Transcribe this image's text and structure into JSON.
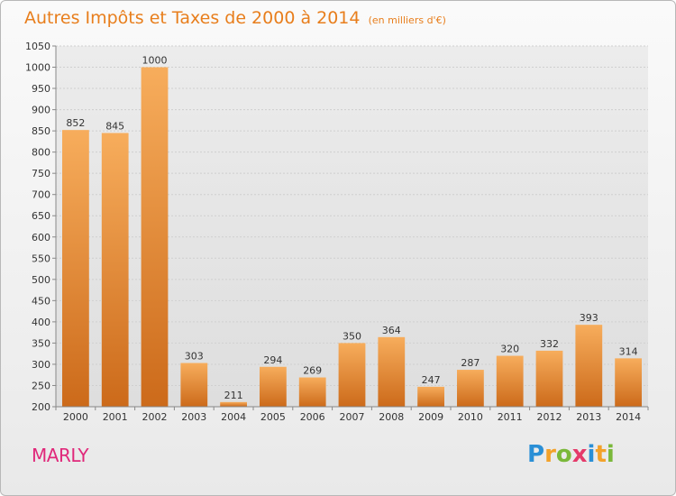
{
  "title": "Autres Impôts et Taxes de 2000 à 2014",
  "subtitle": "(en milliers d'€)",
  "location": "MARLY",
  "logo": {
    "letters": [
      "P",
      "r",
      "o",
      "x",
      "i",
      "t",
      "i"
    ],
    "colors": [
      "#2a8fd6",
      "#f3a22a",
      "#7ab83a",
      "#e53a6a",
      "#2a8fd6",
      "#f3a22a",
      "#7ab83a"
    ]
  },
  "colors": {
    "bar_top": "#f7ad5c",
    "bar_bottom": "#cc6a1a",
    "title": "#e87e1c",
    "location": "#e0287a"
  },
  "chart_data": {
    "type": "bar",
    "title": "Autres Impôts et Taxes de 2000 à 2014",
    "subtitle": "(en milliers d'€)",
    "categories": [
      "2000",
      "2001",
      "2002",
      "2003",
      "2004",
      "2005",
      "2006",
      "2007",
      "2008",
      "2009",
      "2010",
      "2011",
      "2012",
      "2013",
      "2014"
    ],
    "values": [
      852,
      845,
      1000,
      303,
      211,
      294,
      269,
      350,
      364,
      247,
      287,
      320,
      332,
      393,
      314
    ],
    "ylim": [
      200,
      1050
    ],
    "yticks": [
      200,
      250,
      300,
      350,
      400,
      450,
      500,
      550,
      600,
      650,
      700,
      750,
      800,
      850,
      900,
      950,
      1000,
      1050
    ],
    "grid": true,
    "xlabel": "",
    "ylabel": ""
  }
}
